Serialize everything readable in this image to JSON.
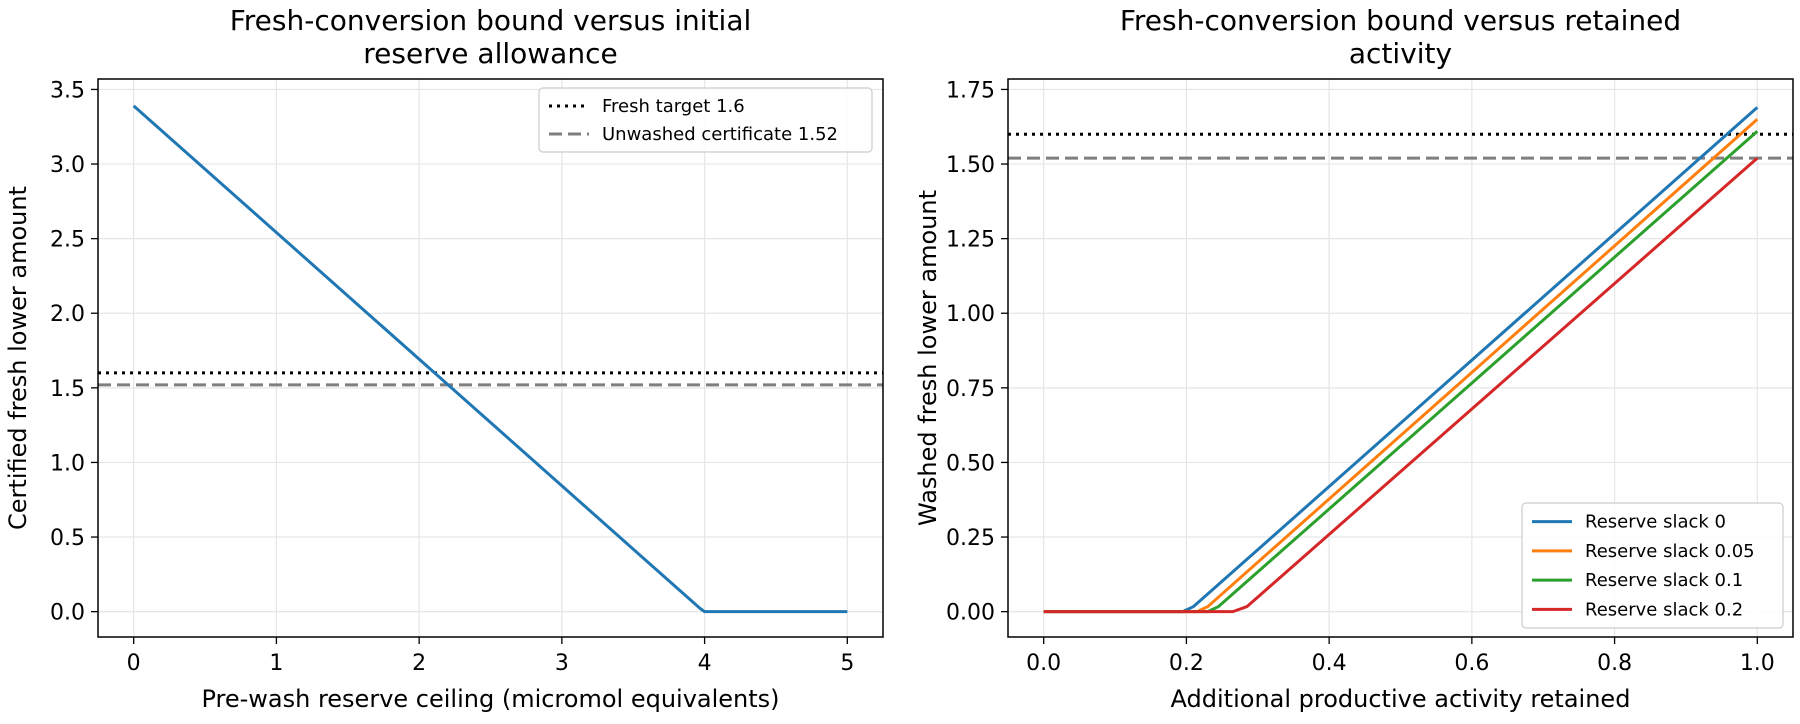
{
  "chart_data": [
    {
      "type": "line",
      "title_lines": [
        "Fresh-conversion bound versus initial",
        "reserve allowance"
      ],
      "xlabel": "Pre-wash reserve ceiling (micromol equivalents)",
      "ylabel": "Certified fresh lower amount",
      "xlim": [
        -0.25,
        5.25
      ],
      "ylim": [
        -0.17,
        3.57
      ],
      "xticks": [
        0,
        1,
        2,
        3,
        4,
        5
      ],
      "xtick_labels": [
        "0",
        "1",
        "2",
        "3",
        "4",
        "5"
      ],
      "yticks": [
        0,
        0.5,
        1.0,
        1.5,
        2.0,
        2.5,
        3.0,
        3.5
      ],
      "ytick_labels": [
        "0.0",
        "0.5",
        "1.0",
        "1.5",
        "2.0",
        "2.5",
        "3.0",
        "3.5"
      ],
      "grid": true,
      "legend_position": "upper right",
      "reference_lines": [
        {
          "name": "Fresh target 1.6",
          "y": 1.6,
          "style": "dotted",
          "color": "#000000"
        },
        {
          "name": "Unwashed certificate 1.52",
          "y": 1.52,
          "style": "dashed",
          "color": "#7f7f7f"
        }
      ],
      "series": [
        {
          "color": "#1f77b4",
          "x": [
            0,
            3.97,
            4.0,
            5.0
          ],
          "y": [
            3.39,
            0.02,
            0.0,
            0.0
          ]
        }
      ]
    },
    {
      "type": "line",
      "title_lines": [
        "Fresh-conversion bound versus retained",
        "activity"
      ],
      "xlabel": "Additional productive activity retained",
      "ylabel": "Washed fresh lower amount",
      "xlim": [
        -0.05,
        1.05
      ],
      "ylim": [
        -0.085,
        1.785
      ],
      "xticks": [
        0.0,
        0.2,
        0.4,
        0.6,
        0.8,
        1.0
      ],
      "xtick_labels": [
        "0.0",
        "0.2",
        "0.4",
        "0.6",
        "0.8",
        "1.0"
      ],
      "yticks": [
        0,
        0.25,
        0.5,
        0.75,
        1.0,
        1.25,
        1.5,
        1.75
      ],
      "ytick_labels": [
        "0.00",
        "0.25",
        "0.50",
        "0.75",
        "1.00",
        "1.25",
        "1.50",
        "1.75"
      ],
      "grid": true,
      "legend_position": "lower right",
      "reference_lines": [
        {
          "y": 1.6,
          "style": "dotted",
          "color": "#000000"
        },
        {
          "y": 1.52,
          "style": "dashed",
          "color": "#7f7f7f"
        }
      ],
      "series": [
        {
          "name": "Reserve slack 0",
          "color": "#1f77b4",
          "x": [
            0,
            0.195,
            0.21,
            1.0
          ],
          "y": [
            0,
            0,
            0.017,
            1.69
          ]
        },
        {
          "name": "Reserve slack 0.05",
          "color": "#ff7f0e",
          "x": [
            0,
            0.215,
            0.23,
            1.0
          ],
          "y": [
            0,
            0,
            0.017,
            1.65
          ]
        },
        {
          "name": "Reserve slack 0.1",
          "color": "#2ca02c",
          "x": [
            0,
            0.23,
            0.245,
            1.0
          ],
          "y": [
            0,
            0,
            0.017,
            1.61
          ]
        },
        {
          "name": "Reserve slack 0.2",
          "color": "#d62728",
          "x": [
            0,
            0.265,
            0.285,
            1.0
          ],
          "y": [
            0,
            0,
            0.017,
            1.52
          ]
        }
      ]
    }
  ]
}
